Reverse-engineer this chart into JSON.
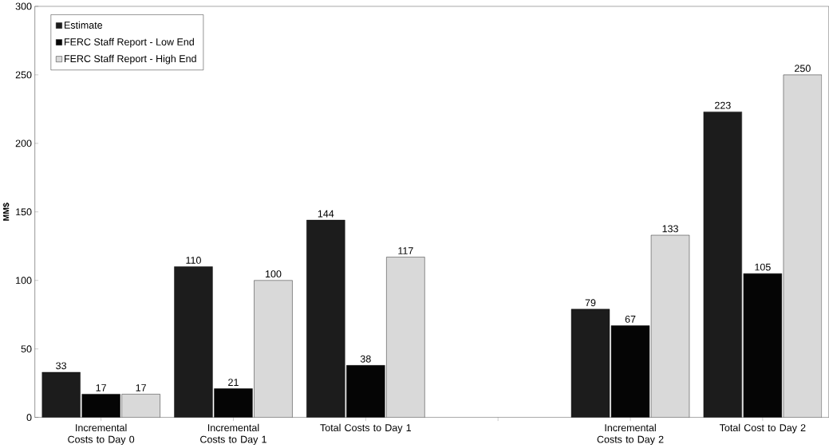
{
  "chart_data": {
    "type": "bar",
    "ylabel": "MM$",
    "categories": [
      "Incremental Costs to Day 0",
      "Incremental Costs to Day 1",
      "Total Costs to Day 1",
      null,
      "Incremental Costs to Day 2",
      "Total Cost to Day 2"
    ],
    "series": [
      {
        "name": "Estimate",
        "color": "#1c1c1c",
        "values": [
          33,
          110,
          144,
          null,
          79,
          223
        ]
      },
      {
        "name": "FERC Staff Report - Low End",
        "color": "#050505",
        "values": [
          17,
          21,
          38,
          null,
          67,
          105
        ]
      },
      {
        "name": "FERC Staff Report - High End",
        "color": "#d9d9d9",
        "values": [
          17,
          100,
          117,
          null,
          133,
          250
        ]
      }
    ],
    "ylim": [
      0,
      300
    ],
    "yticks": [
      0,
      50,
      100,
      150,
      200,
      250,
      300
    ],
    "data_labels": true,
    "legend": "top left",
    "grid": false
  }
}
